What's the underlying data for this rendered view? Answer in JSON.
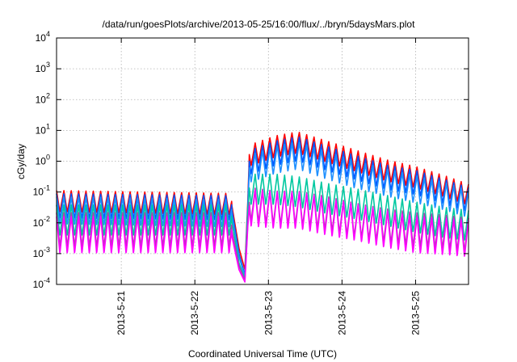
{
  "chart_data": {
    "type": "line",
    "title": "/data/run/goesPlots/archive/2013-05-25/16:00/flux/../bryn/5daysMars.plot",
    "xlabel": "Coordinated Universal Time (UTC)",
    "ylabel": "cGy/day",
    "yscale": "log",
    "ylim": [
      0.0001,
      10000
    ],
    "xlim": [
      20.12,
      25.72
    ],
    "y_ticks": [
      {
        "base": "10",
        "exp": "4"
      },
      {
        "base": "10",
        "exp": "3"
      },
      {
        "base": "10",
        "exp": "2"
      },
      {
        "base": "10",
        "exp": "1"
      },
      {
        "base": "10",
        "exp": "0"
      },
      {
        "base": "10",
        "exp": "-1"
      },
      {
        "base": "10",
        "exp": "-2"
      },
      {
        "base": "10",
        "exp": "-3"
      },
      {
        "base": "10",
        "exp": "-4"
      }
    ],
    "x_ticks": [
      {
        "value": 21,
        "label": "2013-5-21"
      },
      {
        "value": 22,
        "label": "2013-5-22"
      },
      {
        "value": 23,
        "label": "2013-5-23"
      },
      {
        "value": 24,
        "label": "2013-5-24"
      },
      {
        "value": 25,
        "label": "2013-5-25"
      }
    ],
    "grid": true,
    "legend": "none",
    "oscillation_period_days": 0.1,
    "series": [
      {
        "color": "#ff0000",
        "profile": [
          [
            20.12,
            0.05
          ],
          [
            22.5,
            0.04
          ],
          [
            22.6,
            0.0015
          ],
          [
            22.68,
            0.0003
          ],
          [
            22.72,
            0.05
          ],
          [
            22.74,
            1.5
          ],
          [
            23.1,
            3.0
          ],
          [
            23.4,
            4.0
          ],
          [
            23.8,
            2.0
          ],
          [
            24.2,
            1.0
          ],
          [
            24.6,
            0.5
          ],
          [
            25.0,
            0.3
          ],
          [
            25.4,
            0.15
          ],
          [
            25.72,
            0.08
          ]
        ]
      },
      {
        "color": "#0055ff",
        "profile": [
          [
            20.12,
            0.035
          ],
          [
            22.5,
            0.03
          ],
          [
            22.6,
            0.001
          ],
          [
            22.68,
            0.0002
          ],
          [
            22.72,
            0.035
          ],
          [
            22.74,
            0.9
          ],
          [
            23.1,
            1.8
          ],
          [
            23.4,
            2.5
          ],
          [
            23.8,
            1.2
          ],
          [
            24.2,
            0.6
          ],
          [
            24.6,
            0.3
          ],
          [
            25.0,
            0.2
          ],
          [
            25.4,
            0.1
          ],
          [
            25.72,
            0.055
          ]
        ]
      },
      {
        "color": "#1e90ff",
        "profile": [
          [
            20.12,
            0.025
          ],
          [
            22.5,
            0.02
          ],
          [
            22.6,
            0.0008
          ],
          [
            22.68,
            0.00018
          ],
          [
            22.72,
            0.025
          ],
          [
            22.74,
            0.55
          ],
          [
            23.1,
            1.1
          ],
          [
            23.4,
            1.5
          ],
          [
            23.8,
            0.7
          ],
          [
            24.2,
            0.35
          ],
          [
            24.6,
            0.2
          ],
          [
            25.0,
            0.12
          ],
          [
            25.4,
            0.07
          ],
          [
            25.72,
            0.04
          ]
        ]
      },
      {
        "color": "#00c8a0",
        "profile": [
          [
            20.12,
            0.012
          ],
          [
            22.5,
            0.012
          ],
          [
            22.6,
            0.0005
          ],
          [
            22.68,
            0.00015
          ],
          [
            22.72,
            0.02
          ],
          [
            22.74,
            0.12
          ],
          [
            23.1,
            0.12
          ],
          [
            23.4,
            0.1
          ],
          [
            23.8,
            0.06
          ],
          [
            24.2,
            0.04
          ],
          [
            24.6,
            0.025
          ],
          [
            25.0,
            0.015
          ],
          [
            25.4,
            0.01
          ],
          [
            25.72,
            0.008
          ]
        ]
      },
      {
        "color": "#b040b0",
        "profile": [
          [
            20.12,
            0.006
          ],
          [
            22.5,
            0.006
          ],
          [
            22.6,
            0.0004
          ],
          [
            22.68,
            0.00013
          ],
          [
            22.72,
            0.01
          ],
          [
            22.74,
            0.04
          ],
          [
            23.1,
            0.03
          ],
          [
            23.4,
            0.03
          ],
          [
            23.8,
            0.02
          ],
          [
            24.2,
            0.012
          ],
          [
            24.6,
            0.008
          ],
          [
            25.0,
            0.006
          ],
          [
            25.4,
            0.005
          ],
          [
            25.72,
            0.004
          ]
        ]
      },
      {
        "color": "#ff00ff",
        "profile": [
          [
            20.12,
            0.004
          ],
          [
            22.5,
            0.004
          ],
          [
            22.6,
            0.0003
          ],
          [
            22.68,
            0.00012
          ],
          [
            22.72,
            0.008
          ],
          [
            22.74,
            0.03
          ],
          [
            23.1,
            0.025
          ],
          [
            23.4,
            0.025
          ],
          [
            23.8,
            0.015
          ],
          [
            24.2,
            0.01
          ],
          [
            24.6,
            0.006
          ],
          [
            25.0,
            0.004
          ],
          [
            25.4,
            0.0035
          ],
          [
            25.72,
            0.003
          ]
        ]
      }
    ]
  }
}
